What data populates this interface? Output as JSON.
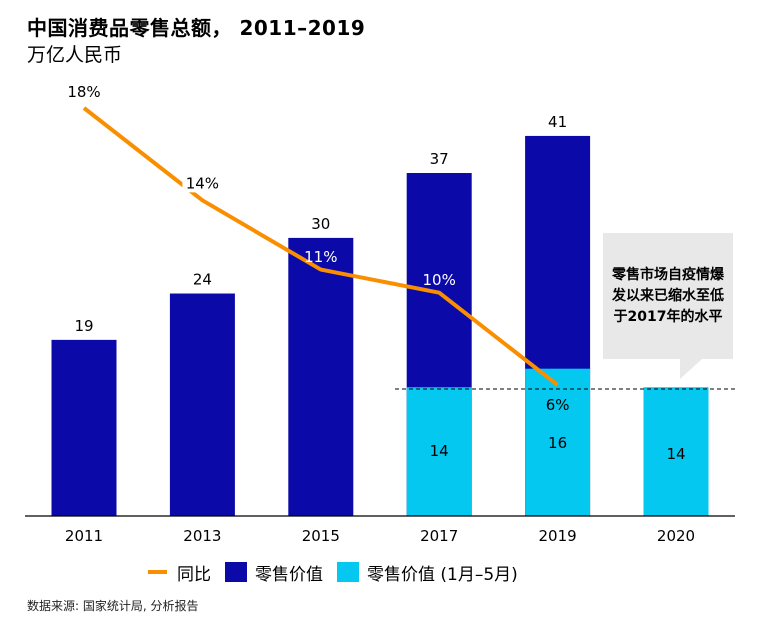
{
  "header": {
    "title": "中国消费品零售总额， 2011–2019",
    "subtitle": "万亿人民币"
  },
  "colors": {
    "retail_value": "#0b0aa8",
    "retail_value_jan_may": "#05c8f0",
    "yoy_line": "#f98f00",
    "callout_bg": "#e8e8e8"
  },
  "chart_data": {
    "type": "bar",
    "title": "中国消费品零售总额， 2011–2019",
    "subtitle": "万亿人民币",
    "xlabel": "",
    "ylabel": "万亿人民币",
    "categories": [
      "2011",
      "2013",
      "2015",
      "2017",
      "2019",
      "2020"
    ],
    "series": [
      {
        "name": "零售价值",
        "type": "bar",
        "values": [
          19,
          24,
          30,
          37,
          41,
          null
        ],
        "labels": [
          "19",
          "24",
          "30",
          "37",
          "41",
          ""
        ]
      },
      {
        "name": "零售价值 (1月–5月)",
        "type": "bar",
        "values": [
          null,
          null,
          null,
          14,
          16,
          14
        ],
        "labels": [
          "",
          "",
          "",
          "14",
          "16",
          "14"
        ]
      },
      {
        "name": "同比",
        "type": "line",
        "values": [
          18,
          14,
          11,
          10,
          6,
          null
        ],
        "labels": [
          "18%",
          "14%",
          "11%",
          "10%",
          "6%",
          ""
        ],
        "unit": "%"
      }
    ],
    "reference_line": {
      "value": 14,
      "style": "dashed",
      "description": "2017年1月–5月水平"
    },
    "ylim": [
      0,
      45
    ],
    "line_ylim": [
      0,
      20
    ],
    "grid": false,
    "legend_position": "bottom",
    "annotation": "零售市场自疫情爆发以来已缩水至低于2017年的水平"
  },
  "callout": {
    "text": "零售市场自疫情爆发以来已缩水至低于2017年的水平"
  },
  "legend": [
    {
      "label": "同比",
      "kind": "line"
    },
    {
      "label": "零售价值",
      "kind": "box"
    },
    {
      "label": "零售价值 (1月–5月)",
      "kind": "box"
    }
  ],
  "source": "数据来源: 国家统计局, 分析报告"
}
